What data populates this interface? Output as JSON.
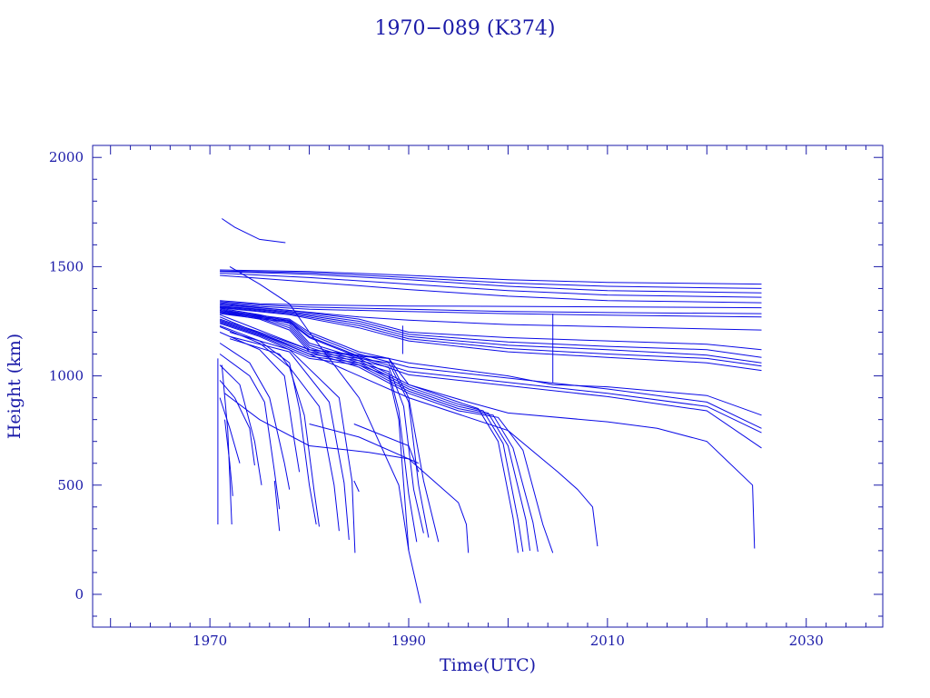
{
  "chart_data": {
    "type": "line",
    "title": "1970−089 (K374)",
    "xlabel": "Time(UTC)",
    "ylabel": "Height (km)",
    "xlim": [
      1958.2,
      2037.7
    ],
    "ylim": [
      -150,
      2055
    ],
    "x_ticks": [
      1970,
      1990,
      2010,
      2030
    ],
    "y_ticks": [
      0,
      500,
      1000,
      1500,
      2000
    ],
    "grid": false,
    "legend": "none",
    "color": "#0a0ae6",
    "axis_color": "#1a1aa8",
    "series": [
      {
        "x": [
          1971.2,
          1972.5,
          1975.0,
          1977.6
        ],
        "y": [
          1720,
          1680,
          1625,
          1610
        ]
      },
      {
        "x": [
          1971.0,
          1980.0,
          1990.0,
          2000.0,
          2010.0,
          2025.5
        ],
        "y": [
          1485,
          1478,
          1460,
          1440,
          1428,
          1420
        ]
      },
      {
        "x": [
          1971.0,
          1980.0,
          1990.0,
          2000.0,
          2010.0,
          2025.5
        ],
        "y": [
          1480,
          1472,
          1450,
          1425,
          1410,
          1400
        ]
      },
      {
        "x": [
          1971.0,
          1980.0,
          1990.0,
          2000.0,
          2010.0,
          2025.5
        ],
        "y": [
          1478,
          1465,
          1440,
          1410,
          1390,
          1380
        ]
      },
      {
        "x": [
          1971.0,
          1980.0,
          1990.0,
          2000.0,
          2010.0,
          2025.5
        ],
        "y": [
          1470,
          1450,
          1420,
          1390,
          1370,
          1360
        ]
      },
      {
        "x": [
          1971.0,
          1980.0,
          1990.0,
          2000.0,
          2010.0,
          2025.5
        ],
        "y": [
          1460,
          1430,
          1395,
          1365,
          1345,
          1335
        ]
      },
      {
        "x": [
          1971.0,
          1975.0,
          1980.0,
          1990.0,
          2000.0,
          2010.0,
          2025.5
        ],
        "y": [
          1345,
          1330,
          1325,
          1320,
          1318,
          1316,
          1312
        ]
      },
      {
        "x": [
          1971.0,
          1975.0,
          1980.0,
          1990.0,
          2000.0,
          2010.0,
          2025.5
        ],
        "y": [
          1340,
          1325,
          1315,
          1305,
          1295,
          1290,
          1285
        ]
      },
      {
        "x": [
          1971.0,
          1975.0,
          1980.0,
          1990.0,
          2000.0,
          2010.0,
          2025.5
        ],
        "y": [
          1335,
          1318,
          1305,
          1295,
          1285,
          1278,
          1270
        ]
      },
      {
        "x": [
          1971.0,
          1978.0,
          1985.0,
          1990.0,
          2000.0,
          2010.0,
          2025.5
        ],
        "y": [
          1330,
          1300,
          1270,
          1255,
          1235,
          1225,
          1210
        ]
      },
      {
        "x": [
          1971.0,
          1978.0,
          1985.0,
          1990.0,
          2000.0,
          2010.0,
          2020.0,
          2025.5
        ],
        "y": [
          1325,
          1300,
          1260,
          1200,
          1175,
          1160,
          1145,
          1120
        ]
      },
      {
        "x": [
          1971.0,
          1978.0,
          1985.0,
          1990.0,
          2000.0,
          2010.0,
          2020.0,
          2025.5
        ],
        "y": [
          1320,
          1295,
          1250,
          1190,
          1155,
          1135,
          1120,
          1085
        ]
      },
      {
        "x": [
          1971.0,
          1978.0,
          1985.0,
          1990.0,
          2000.0,
          2010.0,
          2020.0,
          2025.5
        ],
        "y": [
          1318,
          1290,
          1240,
          1180,
          1140,
          1120,
          1095,
          1060
        ]
      },
      {
        "x": [
          1971.0,
          1978.0,
          1985.0,
          1990.0,
          2000.0,
          2010.0,
          2020.0,
          2025.5
        ],
        "y": [
          1315,
          1285,
          1230,
          1170,
          1125,
          1100,
          1080,
          1045
        ]
      },
      {
        "x": [
          1971.0,
          1978.0,
          1985.0,
          1990.0,
          2000.0,
          2010.0,
          2020.0,
          2025.5
        ],
        "y": [
          1312,
          1280,
          1220,
          1160,
          1110,
          1085,
          1060,
          1025
        ]
      },
      {
        "x": [
          1971.0,
          1978.0,
          1980.0,
          1985.0,
          1990.0,
          2000.0,
          2004.5,
          2010.0,
          2020.0,
          2025.5
        ],
        "y": [
          1300,
          1260,
          1200,
          1110,
          1060,
          1000,
          960,
          950,
          910,
          820
        ]
      },
      {
        "x": [
          1971.0,
          1978.0,
          1980.0,
          1985.0,
          1990.0,
          2000.0,
          2010.0,
          2020.0,
          2025.5
        ],
        "y": [
          1295,
          1255,
          1190,
          1100,
          1040,
          990,
          940,
          880,
          760
        ]
      },
      {
        "x": [
          1971.0,
          1978.0,
          1980.0,
          1985.0,
          1990.0,
          2000.0,
          2010.0,
          2020.0,
          2025.5
        ],
        "y": [
          1290,
          1250,
          1180,
          1090,
          1020,
          970,
          920,
          860,
          740
        ]
      },
      {
        "x": [
          1971.0,
          1978.0,
          1980.0,
          1985.0,
          1990.0,
          2000.0,
          2010.0,
          2020.0,
          2025.5
        ],
        "y": [
          1285,
          1245,
          1175,
          1085,
          1005,
          955,
          905,
          840,
          670
        ]
      },
      {
        "x": [
          1971.0,
          1980.0,
          1988.0,
          1990.0,
          1996.0,
          2000.0,
          2010.0,
          2015.0,
          2020.0,
          2024.6,
          2024.8
        ],
        "y": [
          1280,
          1120,
          1080,
          960,
          880,
          830,
          790,
          760,
          700,
          500,
          210
        ]
      },
      {
        "x": [
          2004.5,
          2004.5
        ],
        "y": [
          1285,
          970
        ]
      },
      {
        "x": [
          1989.4,
          1989.4
        ],
        "y": [
          1230,
          1100
        ]
      },
      {
        "x": [
          1971.0,
          1975.0,
          1978.0,
          1980.0,
          1985.0,
          1990.0,
          1995.0,
          1997.0,
          1999.0,
          2000.5,
          2001.0
        ],
        "y": [
          1310,
          1280,
          1250,
          1150,
          1080,
          960,
          880,
          850,
          700,
          350,
          190
        ]
      },
      {
        "x": [
          1971.0,
          1975.0,
          1978.0,
          1980.0,
          1985.0,
          1990.0,
          1995.0,
          1997.5,
          1999.5,
          2001.0,
          2001.5
        ],
        "y": [
          1305,
          1275,
          1240,
          1140,
          1070,
          950,
          870,
          840,
          690,
          340,
          195
        ]
      },
      {
        "x": [
          1971.0,
          1975.0,
          1978.0,
          1980.0,
          1985.0,
          1990.0,
          1995.0,
          1998.0,
          2000.0,
          2001.8,
          2002.2
        ],
        "y": [
          1300,
          1270,
          1230,
          1130,
          1060,
          940,
          860,
          830,
          680,
          340,
          200
        ]
      },
      {
        "x": [
          1971.0,
          1975.0,
          1978.0,
          1980.0,
          1985.0,
          1990.0,
          1995.0,
          1998.5,
          2000.5,
          2002.5,
          2003.0
        ],
        "y": [
          1295,
          1265,
          1220,
          1120,
          1050,
          930,
          850,
          820,
          670,
          330,
          195
        ]
      },
      {
        "x": [
          1971.0,
          1975.0,
          1978.0,
          1980.0,
          1985.0,
          1990.0,
          1995.0,
          1999.0,
          2001.5,
          2003.5,
          2004.5
        ],
        "y": [
          1290,
          1260,
          1210,
          1110,
          1040,
          920,
          840,
          810,
          660,
          320,
          190
        ]
      },
      {
        "x": [
          1971.0,
          1980.0,
          1990.0,
          2000.0,
          2005.0,
          2007.0,
          2008.5,
          2009.0
        ],
        "y": [
          1270,
          1100,
          900,
          750,
          560,
          480,
          400,
          220
        ]
      },
      {
        "x": [
          1971.0,
          1975.0,
          1980.0,
          1985.0,
          1988.0,
          1990.0,
          1991.5,
          1993.0
        ],
        "y": [
          1260,
          1200,
          1120,
          1090,
          1080,
          900,
          520,
          240
        ]
      },
      {
        "x": [
          1971.0,
          1975.0,
          1980.0,
          1985.0,
          1988.0,
          1990.0,
          1991.0,
          1992.0
        ],
        "y": [
          1255,
          1195,
          1110,
          1080,
          1060,
          880,
          500,
          260
        ]
      },
      {
        "x": [
          1971.0,
          1975.0,
          1980.0,
          1985.0,
          1988.0,
          1989.5,
          1990.5,
          1991.5
        ],
        "y": [
          1250,
          1190,
          1100,
          1070,
          1040,
          860,
          480,
          280
        ]
      },
      {
        "x": [
          1971.0,
          1975.0,
          1980.0,
          1985.0,
          1988.0,
          1989.0,
          1990.0,
          1990.8
        ],
        "y": [
          1245,
          1185,
          1090,
          1060,
          1020,
          840,
          460,
          240
        ]
      },
      {
        "x": [
          1971.0,
          1975.0,
          1980.0,
          1985.0,
          1988.0,
          1989.0,
          1990.0
        ],
        "y": [
          1240,
          1180,
          1080,
          1050,
          1000,
          800,
          200
        ]
      },
      {
        "x": [
          1972.0,
          1975.0,
          1978.0,
          1980.0,
          1985.0,
          1989.0,
          1990.0,
          1991.2
        ],
        "y": [
          1500,
          1420,
          1330,
          1200,
          900,
          500,
          200,
          -40
        ]
      },
      {
        "x": [
          1980.0,
          1985.0,
          1990.0,
          1993.0,
          1995.0,
          1995.8,
          1996.0
        ],
        "y": [
          780,
          720,
          620,
          500,
          420,
          320,
          190
        ]
      },
      {
        "x": [
          1984.5,
          1990.0,
          1991.0
        ],
        "y": [
          780,
          680,
          560
        ]
      },
      {
        "x": [
          1971.0,
          1975.0,
          1978.0,
          1979.0,
          1980.0,
          1980.7
        ],
        "y": [
          1230,
          1160,
          1060,
          850,
          500,
          320
        ]
      },
      {
        "x": [
          1971.0,
          1975.0,
          1978.0,
          1979.5,
          1980.5,
          1981.0
        ],
        "y": [
          1225,
          1150,
          1040,
          820,
          470,
          310
        ]
      },
      {
        "x": [
          1971.0,
          1975.0,
          1977.5,
          1978.5,
          1979.0
        ],
        "y": [
          1200,
          1120,
          1000,
          700,
          560
        ]
      },
      {
        "x": [
          1971.0,
          1974.0,
          1976.0,
          1977.5,
          1978.0
        ],
        "y": [
          1150,
          1060,
          900,
          600,
          480
        ]
      },
      {
        "x": [
          1971.0,
          1974.0,
          1975.5,
          1976.5,
          1977.0
        ],
        "y": [
          1100,
          1000,
          880,
          560,
          390
        ]
      },
      {
        "x": [
          1971.0,
          1973.0,
          1974.5,
          1975.2
        ],
        "y": [
          1050,
          960,
          700,
          500
        ]
      },
      {
        "x": [
          1971.0,
          1972.5,
          1974.0,
          1974.5
        ],
        "y": [
          980,
          900,
          760,
          590
        ]
      },
      {
        "x": [
          1971.0,
          1972.0,
          1973.0
        ],
        "y": [
          900,
          760,
          600
        ]
      },
      {
        "x": [
          1971.5,
          1972.0,
          1972.3
        ],
        "y": [
          800,
          600,
          450
        ]
      },
      {
        "x": [
          1971.2,
          1971.8,
          1972.2
        ],
        "y": [
          1050,
          750,
          320
        ]
      },
      {
        "x": [
          1970.8,
          1970.8
        ],
        "y": [
          1080,
          320
        ]
      },
      {
        "x": [
          1976.5,
          1977.0
        ],
        "y": [
          520,
          290
        ]
      },
      {
        "x": [
          1972.0,
          1978.0,
          1983.0,
          1984.3,
          1984.6
        ],
        "y": [
          1200,
          1120,
          900,
          520,
          190
        ]
      },
      {
        "x": [
          1972.0,
          1978.0,
          1982.0,
          1983.5,
          1984.0
        ],
        "y": [
          1180,
          1110,
          880,
          510,
          250
        ]
      },
      {
        "x": [
          1972.0,
          1977.0,
          1981.0,
          1982.5,
          1983.0
        ],
        "y": [
          1170,
          1100,
          860,
          500,
          290
        ]
      },
      {
        "x": [
          1984.5,
          1985.0
        ],
        "y": [
          520,
          470
        ]
      },
      {
        "x": [
          1971.5,
          1975.0,
          1980.0,
          1986.0,
          1990.0,
          1991.0
        ],
        "y": [
          920,
          800,
          680,
          650,
          620,
          600
        ]
      }
    ]
  }
}
